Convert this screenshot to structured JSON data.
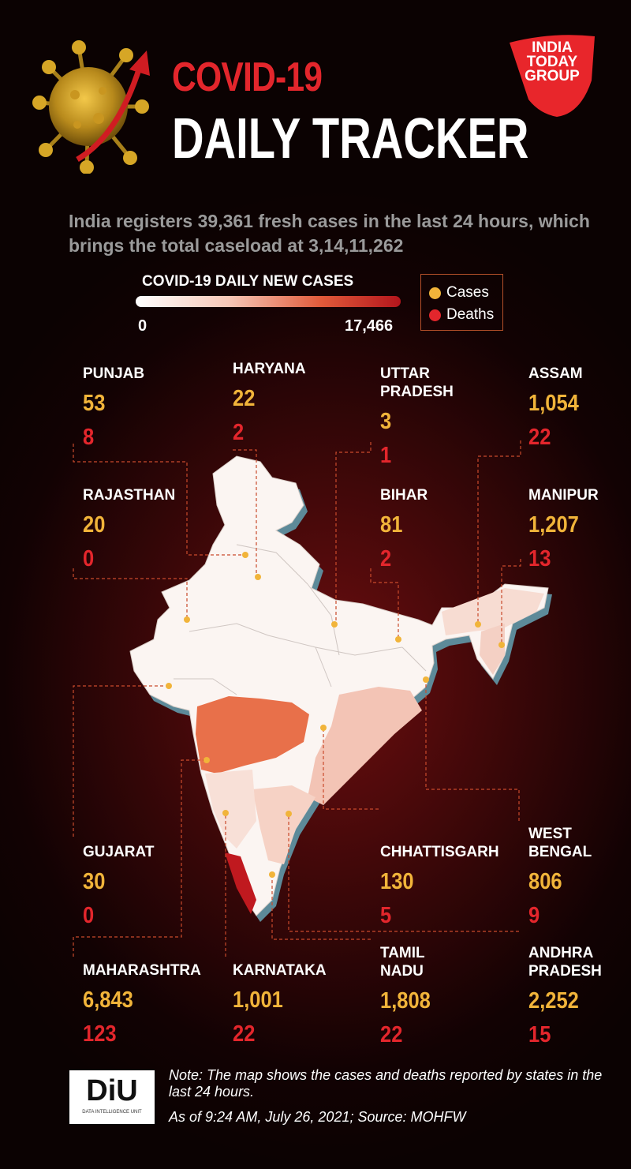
{
  "header": {
    "title_line1": "COVID-19",
    "title_line2": "DAILY TRACKER",
    "logo_line1": "INDIA",
    "logo_line2": "TODAY",
    "logo_line3": "GROUP"
  },
  "subtitle": "India registers 39,361 fresh cases in the last 24 hours, which brings the total caseload at 3,14,11,262",
  "scale": {
    "title": "COVID-19 DAILY NEW CASES",
    "min": "0",
    "max": "17,466",
    "color_low": "#ffffff",
    "color_high": "#b3151c"
  },
  "legend": {
    "cases_label": "Cases",
    "deaths_label": "Deaths",
    "cases_color": "#f1b43a",
    "deaths_color": "#e3262c"
  },
  "states": [
    {
      "name": "PUNJAB",
      "cases": "53",
      "deaths": "8"
    },
    {
      "name": "HARYANA",
      "cases": "22",
      "deaths": "2"
    },
    {
      "name": "UTTAR PRADESH",
      "cases": "3",
      "deaths": "1"
    },
    {
      "name": "ASSAM",
      "cases": "1,054",
      "deaths": "22"
    },
    {
      "name": "RAJASTHAN",
      "cases": "20",
      "deaths": "0"
    },
    {
      "name": "BIHAR",
      "cases": "81",
      "deaths": "2"
    },
    {
      "name": "MANIPUR",
      "cases": "1,207",
      "deaths": "13"
    },
    {
      "name": "GUJARAT",
      "cases": "30",
      "deaths": "0"
    },
    {
      "name": "CHHATTISGARH",
      "cases": "130",
      "deaths": "5"
    },
    {
      "name": "WEST BENGAL",
      "cases": "806",
      "deaths": "9"
    },
    {
      "name": "MAHARASHTRA",
      "cases": "6,843",
      "deaths": "123"
    },
    {
      "name": "KARNATAKA",
      "cases": "1,001",
      "deaths": "22"
    },
    {
      "name": "TAMIL NADU",
      "cases": "1,808",
      "deaths": "22"
    },
    {
      "name": "ANDHRA PRADESH",
      "cases": "2,252",
      "deaths": "15"
    }
  ],
  "footer": {
    "diu_logo_text": "DiU",
    "diu_logo_subtext": "DATA INTELLIGENCE UNIT",
    "note": "Note: The map shows the cases and deaths reported by states in the last 24 hours.",
    "as_of": "As of 9:24 AM, July 26, 2021; Source: MOHFW"
  }
}
